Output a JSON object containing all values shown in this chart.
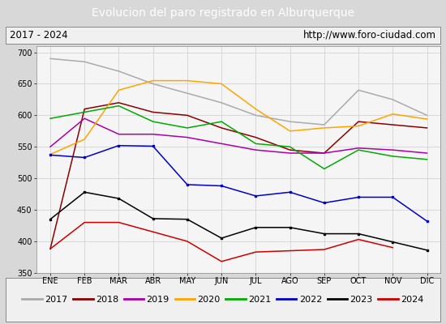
{
  "title": "Evolucion del paro registrado en Alburquerque",
  "subtitle_left": "2017 - 2024",
  "subtitle_right": "http://www.foro-ciudad.com",
  "months": [
    "ENE",
    "FEB",
    "MAR",
    "ABR",
    "MAY",
    "JUN",
    "JUL",
    "AGO",
    "SEP",
    "OCT",
    "NOV",
    "DIC"
  ],
  "ylim": [
    350,
    710
  ],
  "yticks": [
    350,
    400,
    450,
    500,
    550,
    600,
    650,
    700
  ],
  "series": {
    "2017": {
      "color": "#aaaaaa",
      "values": [
        690,
        685,
        670,
        650,
        635,
        620,
        600,
        590,
        585,
        640,
        625,
        600
      ]
    },
    "2018": {
      "color": "#8b0000",
      "values": [
        388,
        610,
        620,
        605,
        600,
        580,
        565,
        545,
        540,
        590,
        585,
        580
      ]
    },
    "2019": {
      "color": "#aa00aa",
      "values": [
        550,
        595,
        570,
        570,
        565,
        555,
        545,
        540,
        540,
        548,
        545,
        540
      ]
    },
    "2020": {
      "color": "#ffa500",
      "values": [
        538,
        562,
        640,
        655,
        655,
        650,
        610,
        575,
        580,
        583,
        602,
        594
      ]
    },
    "2021": {
      "color": "#00aa00",
      "values": [
        595,
        605,
        615,
        590,
        580,
        590,
        555,
        550,
        515,
        545,
        535,
        530
      ]
    },
    "2022": {
      "color": "#0000cc",
      "values": [
        537,
        533,
        552,
        551,
        490,
        488,
        472,
        478,
        461,
        470,
        470,
        432
      ]
    },
    "2023": {
      "color": "#000000",
      "values": [
        435,
        478,
        468,
        436,
        435,
        405,
        422,
        422,
        412,
        412,
        399,
        386
      ]
    },
    "2024": {
      "color": "#cc0000",
      "values": [
        388,
        430,
        430,
        415,
        400,
        368,
        383,
        385,
        387,
        403,
        390,
        null
      ]
    }
  },
  "title_bg_color": "#4a90d9",
  "title_text_color": "#ffffff",
  "subtitle_bg_color": "#f0f0f0",
  "outer_bg_color": "#d8d8d8",
  "plot_bg_color": "#f5f5f5",
  "grid_color": "#cccccc",
  "legend_bg_color": "#f0f0f0",
  "title_fontsize": 10,
  "tick_fontsize": 7,
  "legend_fontsize": 8
}
